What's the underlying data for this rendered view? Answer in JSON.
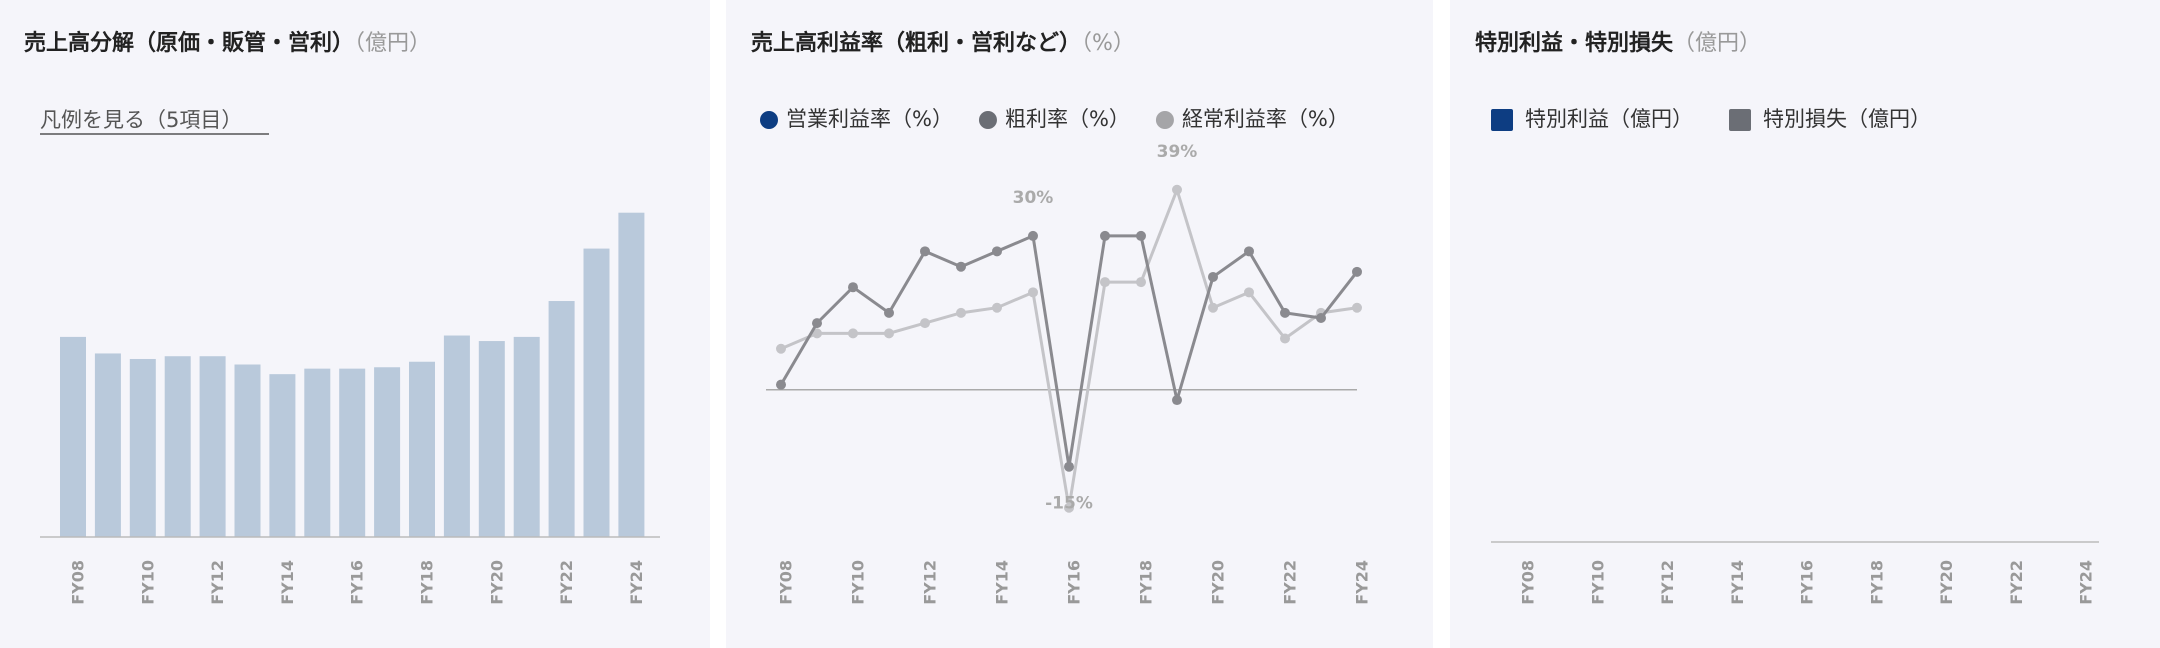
{
  "chart_data": [
    {
      "type": "bar",
      "title": "売上高分解（原価・販管・営利）",
      "unit": "（億円）",
      "legend_toggle": "凡例を見る（5項目）",
      "categories": [
        "FY08",
        null,
        "FY10",
        null,
        "FY12",
        null,
        "FY14",
        null,
        "FY16",
        null,
        "FY18",
        null,
        "FY20",
        null,
        "FY22",
        null,
        "FY24"
      ],
      "values": [
        145,
        133,
        129,
        131,
        131,
        125,
        118,
        122,
        122,
        123,
        127,
        146,
        142,
        145,
        171,
        209,
        235
      ],
      "color": "#b9c9db",
      "ylim": [
        0,
        250
      ]
    },
    {
      "type": "line",
      "title": "売上高利益率（粗利・営利など）",
      "unit": "（%）",
      "categories": [
        "FY08",
        null,
        "FY10",
        null,
        "FY12",
        null,
        "FY14",
        null,
        "FY16",
        null,
        "FY18",
        null,
        "FY20",
        null,
        "FY22",
        null,
        "FY24"
      ],
      "series": [
        {
          "name": "営業利益率（%）",
          "color": "#0d3d82",
          "legend_color": "#0d3d82",
          "values": [
            null,
            null,
            null,
            null,
            null,
            null,
            null,
            null,
            null,
            null,
            null,
            null,
            null,
            null,
            null,
            null,
            null
          ]
        },
        {
          "name": "粗利率（%）",
          "color": "#8a8a8f",
          "legend_color": "#6b6e75",
          "values": [
            1,
            13,
            20,
            15,
            27,
            24,
            27,
            30,
            -15,
            30,
            30,
            -2,
            22,
            27,
            15,
            14,
            23
          ],
          "value_labels": [
            null,
            null,
            null,
            null,
            null,
            null,
            null,
            "30%",
            "-15%",
            null,
            null,
            null,
            null,
            null,
            null,
            null,
            null
          ]
        },
        {
          "name": "経常利益率（%）",
          "color": "#c4c4c8",
          "legend_color": "#a5a5a8",
          "values": [
            8,
            11,
            11,
            11,
            13,
            15,
            16,
            19,
            -23,
            21,
            21,
            39,
            16,
            19,
            10,
            15,
            16
          ],
          "value_labels": [
            null,
            null,
            null,
            null,
            null,
            null,
            null,
            null,
            null,
            null,
            null,
            "39%",
            null,
            null,
            null,
            null,
            null
          ]
        }
      ],
      "ylim": [
        -25,
        45
      ]
    },
    {
      "type": "bar",
      "title": "特別利益・特別損失",
      "unit": "（億円）",
      "categories": [
        "FY08",
        null,
        "FY10",
        null,
        "FY12",
        null,
        "FY14",
        null,
        "FY16",
        null,
        "FY18",
        null,
        "FY20",
        null,
        "FY22",
        null,
        "FY24"
      ],
      "series": [
        {
          "name": "特別利益（億円）",
          "color": "#0d3d82",
          "values": [
            null,
            null,
            null,
            null,
            null,
            null,
            null,
            null,
            null,
            null,
            null,
            null,
            null,
            null,
            null,
            null,
            null
          ]
        },
        {
          "name": "特別損失（億円）",
          "color": "#6b6e75",
          "values": [
            null,
            null,
            null,
            null,
            null,
            null,
            null,
            null,
            null,
            null,
            null,
            null,
            null,
            null,
            null,
            null,
            null
          ]
        }
      ]
    }
  ]
}
